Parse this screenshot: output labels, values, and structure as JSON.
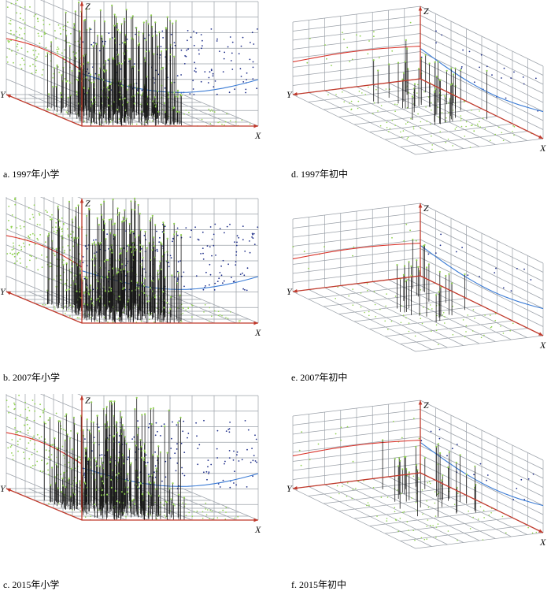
{
  "figure": {
    "axis_labels": {
      "x": "X",
      "y": "Y",
      "z": "Z"
    },
    "colors": {
      "grid": "#9aa0a8",
      "axis": "#c0392b",
      "stem": "#1a1a1a",
      "green_points": "#8fd14f",
      "blue_points": "#1f2f8a",
      "blue_trend": "#3a7bd5",
      "red_trend": "#d9342b"
    }
  },
  "chart_data": [
    {
      "id": "a",
      "caption": "a. 1997年小学",
      "type": "scatter3d",
      "xlabel": "X",
      "ylabel": "Y",
      "zlabel": "Z",
      "grid": true,
      "density": "high",
      "point_count_estimate": 260
    },
    {
      "id": "d",
      "caption": "d. 1997年初中",
      "type": "scatter3d",
      "xlabel": "X",
      "ylabel": "Y",
      "zlabel": "Z",
      "grid": true,
      "density": "low",
      "point_count_estimate": 40
    },
    {
      "id": "b",
      "caption": "b. 2007年小学",
      "type": "scatter3d",
      "xlabel": "X",
      "ylabel": "Y",
      "zlabel": "Z",
      "grid": true,
      "density": "high",
      "point_count_estimate": 300
    },
    {
      "id": "e",
      "caption": "e. 2007年初中",
      "type": "scatter3d",
      "xlabel": "X",
      "ylabel": "Y",
      "zlabel": "Z",
      "grid": true,
      "density": "low",
      "point_count_estimate": 24
    },
    {
      "id": "c",
      "caption": "c. 2015年小学",
      "type": "scatter3d",
      "xlabel": "X",
      "ylabel": "Y",
      "zlabel": "Z",
      "grid": true,
      "density": "high",
      "point_count_estimate": 250
    },
    {
      "id": "f",
      "caption": "f. 2015年初中",
      "type": "scatter3d",
      "xlabel": "X",
      "ylabel": "Y",
      "zlabel": "Z",
      "grid": true,
      "density": "low",
      "point_count_estimate": 30
    }
  ]
}
